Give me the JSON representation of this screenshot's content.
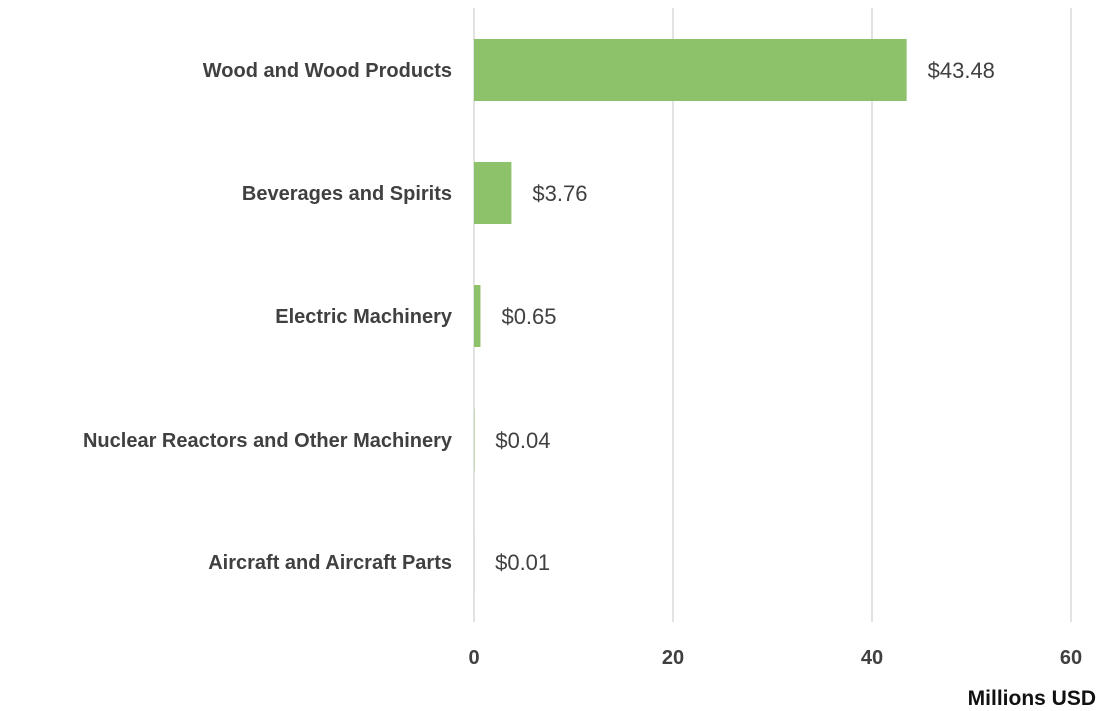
{
  "chart_data": {
    "type": "bar",
    "orientation": "horizontal",
    "title": "",
    "xlabel": "Millions USD",
    "ylabel": "",
    "categories": [
      "Wood and Wood Products",
      "Beverages and Spirits",
      "Electric Machinery",
      "Nuclear Reactors and Other Machinery",
      "Aircraft and Aircraft Parts"
    ],
    "values": [
      43.48,
      3.76,
      0.65,
      0.04,
      0.01
    ],
    "value_labels": [
      "$43.48",
      "$3.76",
      "$0.65",
      "$0.04",
      "$0.01"
    ],
    "xlim": [
      0,
      60
    ],
    "xticks": [
      0,
      20,
      40,
      60
    ],
    "xtick_labels": [
      "0",
      "20",
      "40",
      "60"
    ],
    "grid": "vertical",
    "legend": "none",
    "bar_color": "#8dc26b",
    "gridline_color": "#d9d9d9",
    "text_color": "#404040"
  }
}
